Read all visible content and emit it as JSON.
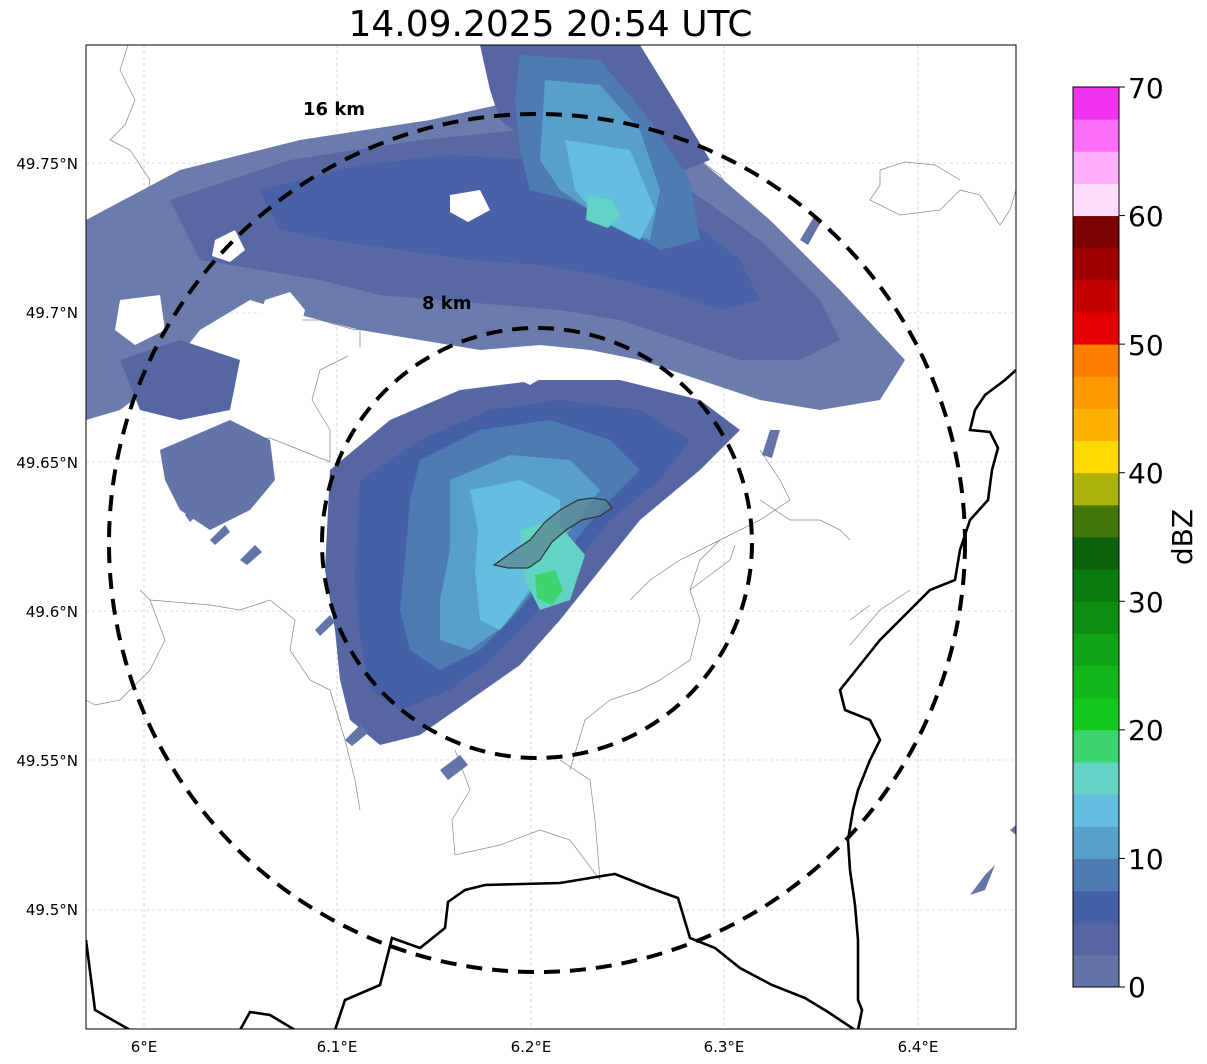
{
  "title": "14.09.2025 20:54 UTC",
  "map": {
    "lat_labels": [
      "49.75°N",
      "49.7°N",
      "49.65°N",
      "49.6°N",
      "49.55°N",
      "49.5°N"
    ],
    "lon_labels": [
      "6°E",
      "6.1°E",
      "6.2°E",
      "6.3°E",
      "6.4°E"
    ],
    "range_rings": [
      {
        "label": "16 km",
        "radius_km": 16
      },
      {
        "label": "8 km",
        "radius_km": 8
      }
    ],
    "radar_center": {
      "lon": 6.202,
      "lat": 49.623
    }
  },
  "colorbar": {
    "label": "dBZ",
    "ticks": [
      "0",
      "10",
      "20",
      "30",
      "40",
      "50",
      "60",
      "70"
    ],
    "min": 0,
    "max": 70,
    "step": 2.5,
    "colors": [
      "#6374a8",
      "#5666a2",
      "#4660a8",
      "#4d7bb4",
      "#58a0c9",
      "#63bedf",
      "#62d4c5",
      "#3ed46d",
      "#12c81b",
      "#12b81a",
      "#0ea416",
      "#0d8d12",
      "#087a0f",
      "#0a620b",
      "#437609",
      "#aab20a",
      "#fdd900",
      "#feb200",
      "#ff9900",
      "#ff7e00",
      "#e40000",
      "#c30000",
      "#a10000",
      "#7b0000",
      "#ffdcfe",
      "#ffaefc",
      "#ff6dfb",
      "#f232ee"
    ]
  },
  "colors": {
    "grid": "#bbbbbb",
    "border": "#000000",
    "admin": "#888888",
    "city": "#5b8791"
  }
}
